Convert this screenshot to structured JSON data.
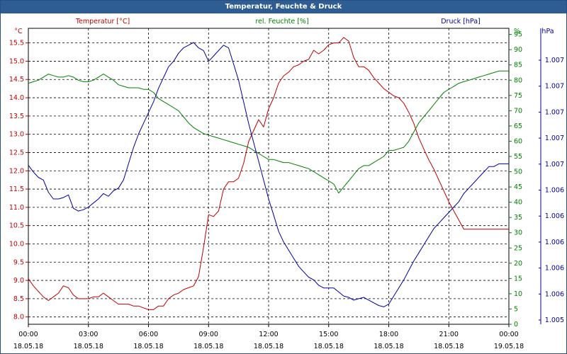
{
  "window": {
    "title": "Temperatur, Feuchte & Druck"
  },
  "chart_data": {
    "type": "line",
    "title": "Temperatur, Feuchte & Druck",
    "colors": {
      "temperature": "#c00000",
      "humidity": "#008000",
      "pressure": "#0000a0"
    },
    "axes": {
      "left": {
        "label": "Temperatur [°C]",
        "unit": "°C",
        "range": [
          7.8,
          15.9
        ],
        "ticks": [
          "8.0",
          "8.5",
          "9.0",
          "9.5",
          "10.0",
          "10.5",
          "11.0",
          "11.5",
          "12.0",
          "12.5",
          "13.0",
          "13.5",
          "14.0",
          "14.5",
          "15.0",
          "15.5"
        ]
      },
      "right1": {
        "label": "rel. Feuchte [%]",
        "unit": "%",
        "range": [
          0,
          97
        ],
        "ticks": [
          "0",
          "5",
          "10",
          "15",
          "20",
          "25",
          "30",
          "35",
          "40",
          "45",
          "50",
          "55",
          "60",
          "65",
          "70",
          "75",
          "80",
          "85",
          "90",
          "95"
        ]
      },
      "right2": {
        "label": "Druck [hPa]",
        "unit": "hPa",
        "ticks": [
          "1.005",
          "1.006",
          "1.006",
          "1.006",
          "1.006",
          "1.006",
          "1.007",
          "1.007",
          "1.007",
          "1.007",
          "1.007"
        ]
      }
    },
    "x_ticks": [
      {
        "time": "00:00",
        "date": "18.05.18"
      },
      {
        "time": "03:00",
        "date": "18.05.18"
      },
      {
        "time": "06:00",
        "date": "18.05.18"
      },
      {
        "time": "09:00",
        "date": "18.05.18"
      },
      {
        "time": "12:00",
        "date": "18.05.18"
      },
      {
        "time": "15:00",
        "date": "18.05.18"
      },
      {
        "time": "18:00",
        "date": "18.05.18"
      },
      {
        "time": "21:00",
        "date": "18.05.18"
      },
      {
        "time": "00:00",
        "date": "19.05.18"
      }
    ],
    "grid": true,
    "series": [
      {
        "name": "Temperatur [°C]",
        "axis": "left",
        "x": [
          0,
          0.25,
          0.5,
          0.75,
          1,
          1.25,
          1.5,
          1.75,
          2,
          2.25,
          2.5,
          2.75,
          3,
          3.25,
          3.5,
          3.75,
          4,
          4.25,
          4.5,
          4.75,
          5,
          5.25,
          5.5,
          5.75,
          6,
          6.25,
          6.5,
          6.75,
          7,
          7.25,
          7.5,
          7.75,
          8,
          8.25,
          8.5,
          8.75,
          9,
          9.25,
          9.5,
          9.75,
          10,
          10.25,
          10.5,
          10.75,
          11,
          11.25,
          11.5,
          11.75,
          12,
          12.25,
          12.5,
          12.75,
          13,
          13.25,
          13.5,
          13.75,
          14,
          14.25,
          14.5,
          14.75,
          15,
          15.25,
          15.5,
          15.75,
          16,
          16.25,
          16.5,
          16.75,
          17,
          17.25,
          17.5,
          17.75,
          18,
          18.25,
          18.5,
          18.75,
          19,
          19.25,
          19.5,
          19.75,
          20,
          20.25,
          20.5,
          20.75,
          21,
          21.25,
          21.5,
          21.75,
          22,
          22.25,
          22.5,
          22.75,
          23,
          23.25,
          23.5,
          23.75,
          24
        ],
        "values": [
          9.05,
          8.85,
          8.7,
          8.55,
          8.45,
          8.55,
          8.65,
          8.85,
          8.8,
          8.6,
          8.5,
          8.5,
          8.5,
          8.55,
          8.55,
          8.65,
          8.55,
          8.45,
          8.35,
          8.35,
          8.35,
          8.3,
          8.3,
          8.25,
          8.2,
          8.2,
          8.3,
          8.3,
          8.5,
          8.6,
          8.65,
          8.75,
          8.8,
          8.85,
          9.1,
          9.9,
          10.8,
          10.75,
          10.9,
          11.5,
          11.7,
          11.7,
          11.8,
          12.2,
          12.8,
          13.1,
          13.4,
          13.2,
          13.7,
          14.0,
          14.4,
          14.6,
          14.7,
          14.85,
          14.9,
          15.0,
          15.05,
          15.3,
          15.2,
          15.3,
          15.45,
          15.5,
          15.5,
          15.65,
          15.55,
          15.1,
          14.85,
          14.85,
          14.75,
          14.55,
          14.4,
          14.25,
          14.15,
          14.05,
          14.0,
          13.85,
          13.6,
          13.3,
          12.9,
          12.6,
          12.3,
          12.05,
          11.75,
          11.45,
          11.15,
          10.9,
          10.65,
          10.4,
          10.4,
          10.4,
          10.4,
          10.4,
          10.4,
          10.4,
          10.4,
          10.4,
          10.4
        ]
      },
      {
        "name": "rel. Feuchte [%]",
        "axis": "right1",
        "x": [
          0,
          0.25,
          0.5,
          0.75,
          1,
          1.25,
          1.5,
          1.75,
          2,
          2.25,
          2.5,
          2.75,
          3,
          3.25,
          3.5,
          3.75,
          4,
          4.25,
          4.5,
          4.75,
          5,
          5.25,
          5.5,
          5.75,
          6,
          6.25,
          6.5,
          6.75,
          7,
          7.25,
          7.5,
          7.75,
          8,
          8.25,
          8.5,
          8.75,
          9,
          9.25,
          9.5,
          9.75,
          10,
          10.25,
          10.5,
          10.75,
          11,
          11.25,
          11.5,
          11.75,
          12,
          12.25,
          12.5,
          12.75,
          13,
          13.25,
          13.5,
          13.75,
          14,
          14.25,
          14.5,
          14.75,
          15,
          15.25,
          15.5,
          15.75,
          16,
          16.25,
          16.5,
          16.75,
          17,
          17.25,
          17.5,
          17.75,
          18,
          18.25,
          18.5,
          18.75,
          19,
          19.25,
          19.5,
          19.75,
          20,
          20.25,
          20.5,
          20.75,
          21,
          21.25,
          21.5,
          21.75,
          22,
          22.25,
          22.5,
          22.75,
          23,
          23.25,
          23.5,
          23.75,
          24
        ],
        "values": [
          79,
          79.5,
          80,
          81,
          82,
          81.5,
          81,
          81,
          81.5,
          81,
          80,
          79.5,
          79.5,
          80,
          81,
          82,
          81,
          80,
          78.5,
          78,
          77.5,
          77.5,
          77.5,
          77,
          77,
          76,
          74,
          73,
          72,
          71,
          70,
          68,
          66,
          64.5,
          63.5,
          62.5,
          62,
          61.5,
          61,
          60.5,
          60,
          59.5,
          59,
          58.5,
          58,
          57,
          56,
          55,
          54,
          54,
          53.5,
          53,
          53,
          52.5,
          52,
          51.5,
          51,
          50,
          49,
          48,
          47,
          46,
          43,
          45,
          47,
          49,
          51,
          52,
          52,
          53,
          54,
          55,
          57,
          57,
          57.5,
          58,
          60,
          63,
          66,
          68,
          70,
          72,
          74,
          76,
          77,
          78,
          79,
          79.5,
          80,
          80.5,
          81,
          81.5,
          82,
          82.5,
          83,
          83,
          83
        ]
      },
      {
        "name": "Druck [hPa]",
        "axis": "right2",
        "display": "relative_0_1",
        "x": [
          0,
          0.25,
          0.5,
          0.75,
          1,
          1.25,
          1.5,
          1.75,
          2,
          2.25,
          2.5,
          2.75,
          3,
          3.25,
          3.5,
          3.75,
          4,
          4.25,
          4.5,
          4.75,
          5,
          5.25,
          5.5,
          5.75,
          6,
          6.25,
          6.5,
          6.75,
          7,
          7.25,
          7.5,
          7.75,
          8,
          8.25,
          8.5,
          8.75,
          9,
          9.25,
          9.5,
          9.75,
          10,
          10.25,
          10.5,
          10.75,
          11,
          11.25,
          11.5,
          11.75,
          12,
          12.25,
          12.5,
          12.75,
          13,
          13.25,
          13.5,
          13.75,
          14,
          14.25,
          14.5,
          14.75,
          15,
          15.25,
          15.5,
          15.75,
          16,
          16.25,
          16.5,
          16.75,
          17,
          17.25,
          17.5,
          17.75,
          18,
          18.25,
          18.5,
          18.75,
          19,
          19.25,
          19.5,
          19.75,
          20,
          20.25,
          20.5,
          20.75,
          21,
          21.25,
          21.5,
          21.75,
          22,
          22.25,
          22.5,
          22.75,
          23,
          23.25,
          23.5,
          23.75,
          24
        ],
        "values": [
          0.545,
          0.52,
          0.5,
          0.49,
          0.445,
          0.42,
          0.42,
          0.425,
          0.435,
          0.385,
          0.375,
          0.38,
          0.39,
          0.405,
          0.42,
          0.44,
          0.43,
          0.45,
          0.46,
          0.49,
          0.55,
          0.61,
          0.66,
          0.7,
          0.74,
          0.78,
          0.83,
          0.87,
          0.91,
          0.93,
          0.96,
          0.98,
          0.99,
          1.0,
          0.98,
          0.97,
          0.93,
          0.95,
          0.97,
          0.99,
          0.98,
          0.92,
          0.86,
          0.78,
          0.7,
          0.63,
          0.56,
          0.49,
          0.42,
          0.36,
          0.3,
          0.26,
          0.23,
          0.2,
          0.17,
          0.15,
          0.13,
          0.12,
          0.1,
          0.09,
          0.09,
          0.09,
          0.075,
          0.06,
          0.055,
          0.045,
          0.05,
          0.055,
          0.045,
          0.035,
          0.025,
          0.02,
          0.03,
          0.06,
          0.09,
          0.12,
          0.155,
          0.19,
          0.22,
          0.25,
          0.28,
          0.31,
          0.33,
          0.35,
          0.37,
          0.39,
          0.41,
          0.44,
          0.46,
          0.48,
          0.5,
          0.52,
          0.54,
          0.54,
          0.55,
          0.55,
          0.55
        ]
      }
    ]
  }
}
